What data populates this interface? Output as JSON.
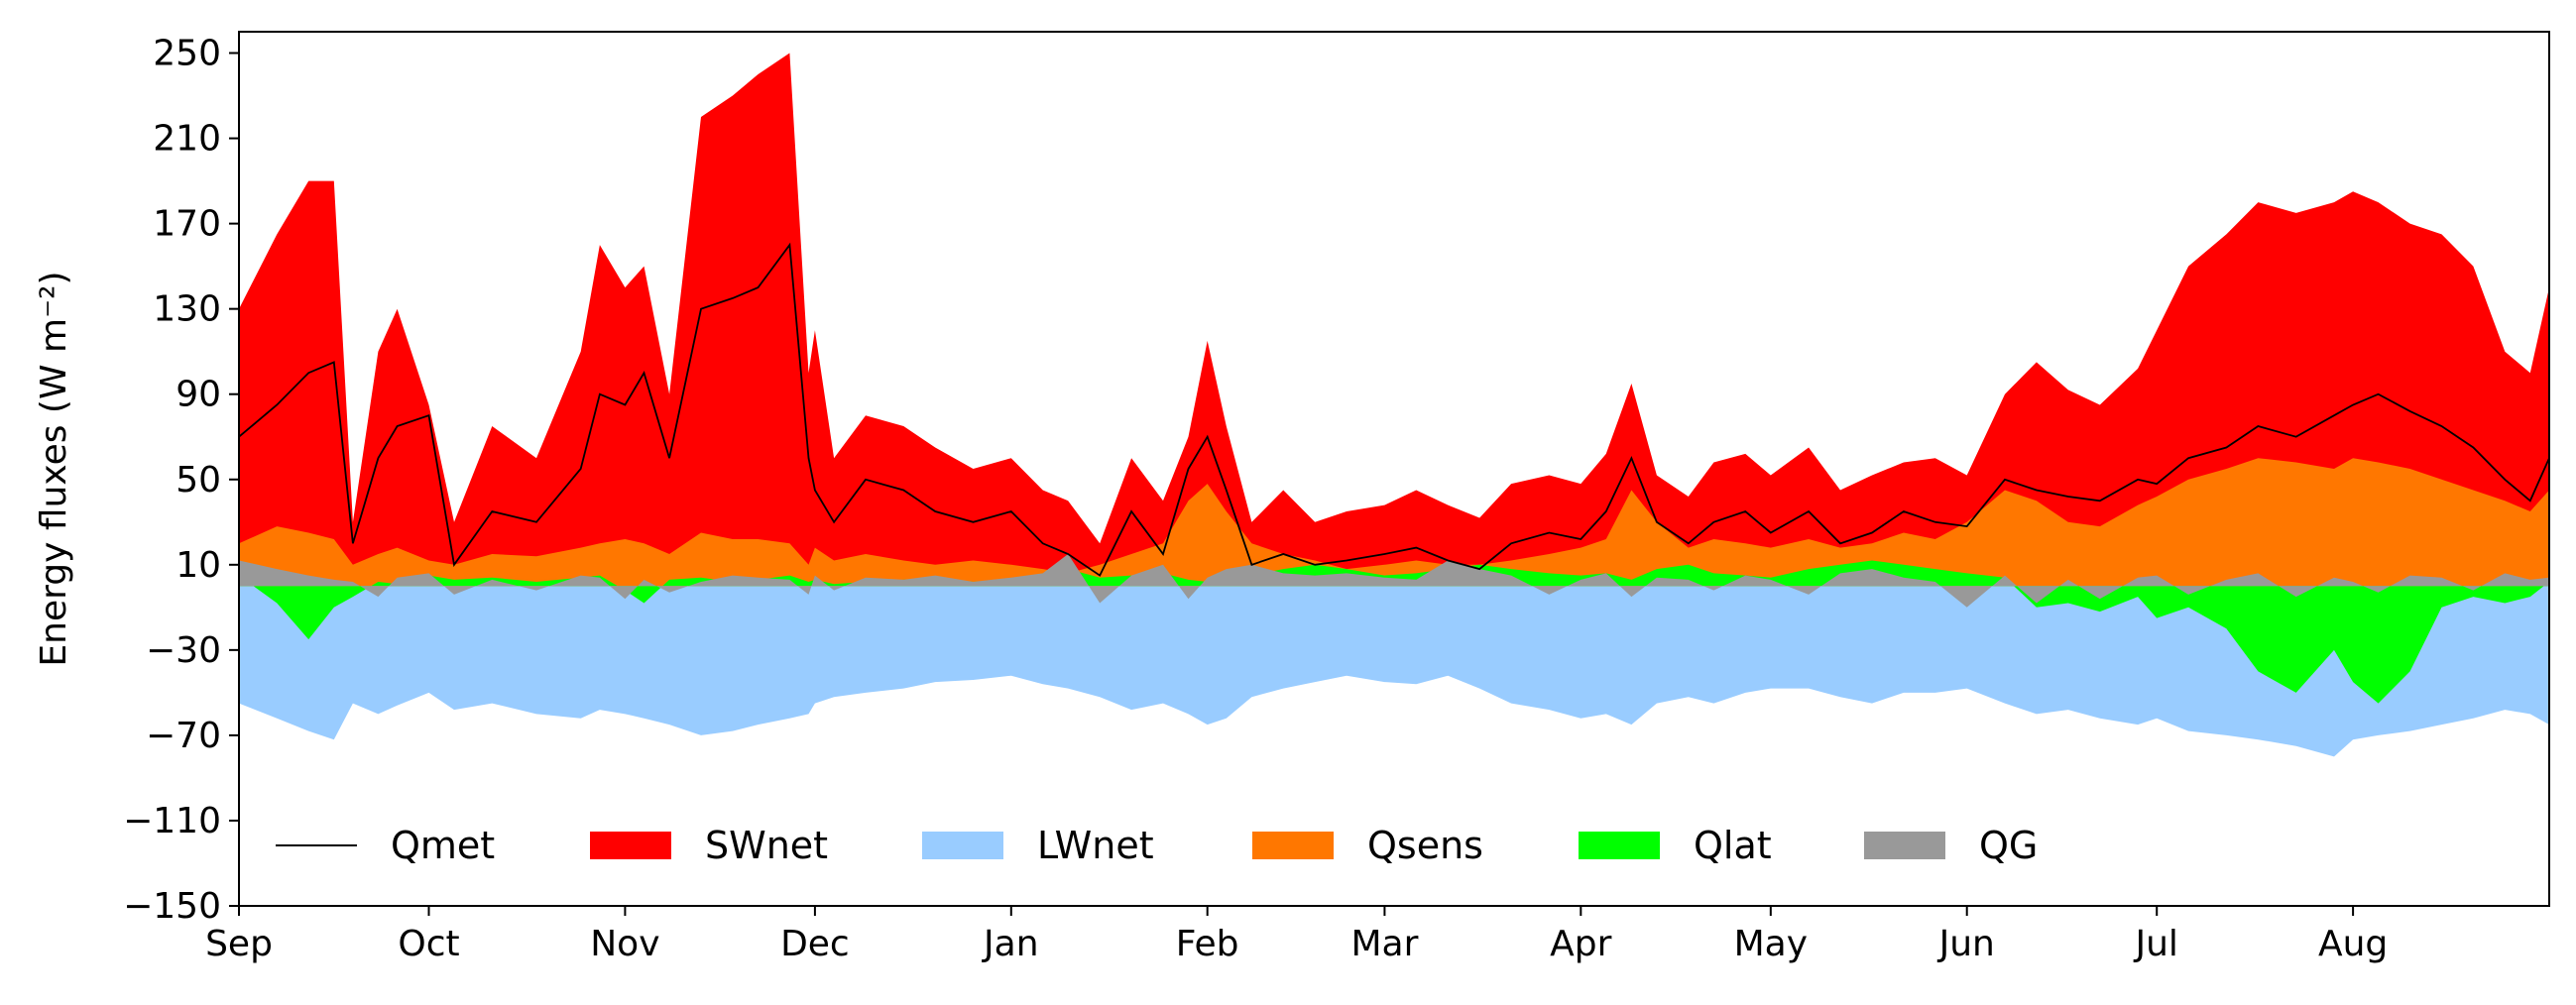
{
  "chart_data": {
    "type": "area",
    "title": "",
    "xlabel": "",
    "ylabel": "Energy fluxes (W m⁻²)",
    "ylim": [
      -150,
      260
    ],
    "yticks": [
      250,
      210,
      170,
      130,
      90,
      50,
      10,
      -30,
      -70,
      -110,
      -150
    ],
    "ytick_labels": [
      "250",
      "210",
      "170",
      "130",
      "90",
      "50",
      "10",
      "−30",
      "−70",
      "−110",
      "−150"
    ],
    "xlim": [
      0,
      365
    ],
    "xticks": [
      {
        "label": "Sep",
        "day": 0
      },
      {
        "label": "Oct",
        "day": 30
      },
      {
        "label": "Nov",
        "day": 61
      },
      {
        "label": "Dec",
        "day": 91
      },
      {
        "label": "Jan",
        "day": 122
      },
      {
        "label": "Feb",
        "day": 153
      },
      {
        "label": "Mar",
        "day": 181
      },
      {
        "label": "Apr",
        "day": 212
      },
      {
        "label": "May",
        "day": 242
      },
      {
        "label": "Jun",
        "day": 273
      },
      {
        "label": "Jul",
        "day": 303
      },
      {
        "label": "Aug",
        "day": 334
      }
    ],
    "grid": false,
    "legend_position": "bottom-left",
    "x": [
      0,
      6,
      11,
      15,
      18,
      22,
      25,
      30,
      34,
      40,
      47,
      54,
      57,
      61,
      64,
      68,
      73,
      78,
      82,
      87,
      90,
      91,
      94,
      99,
      105,
      110,
      116,
      122,
      127,
      131,
      136,
      141,
      146,
      150,
      153,
      156,
      160,
      165,
      170,
      175,
      181,
      186,
      191,
      196,
      201,
      207,
      212,
      216,
      220,
      224,
      229,
      233,
      238,
      242,
      248,
      253,
      258,
      263,
      268,
      273,
      279,
      284,
      289,
      294,
      300,
      303,
      308,
      314,
      319,
      325,
      331,
      334,
      338,
      343,
      348,
      353,
      358,
      362,
      365
    ],
    "series": [
      {
        "name": "SWnet",
        "color": "#ff0000",
        "values": [
          130,
          165,
          190,
          190,
          30,
          110,
          130,
          85,
          30,
          75,
          60,
          110,
          160,
          140,
          150,
          90,
          220,
          230,
          240,
          250,
          100,
          120,
          60,
          80,
          75,
          65,
          55,
          60,
          45,
          40,
          20,
          60,
          40,
          70,
          115,
          75,
          30,
          45,
          30,
          35,
          38,
          45,
          38,
          32,
          48,
          52,
          48,
          62,
          95,
          52,
          42,
          58,
          62,
          52,
          65,
          45,
          52,
          58,
          60,
          52,
          90,
          105,
          92,
          85,
          102,
          120,
          150,
          165,
          180,
          175,
          180,
          185,
          180,
          170,
          165,
          150,
          110,
          100,
          140
        ]
      },
      {
        "name": "LWnet",
        "color": "#99ccff",
        "values": [
          -55,
          -62,
          -68,
          -72,
          -55,
          -60,
          -56,
          -50,
          -58,
          -55,
          -60,
          -62,
          -58,
          -60,
          -62,
          -65,
          -70,
          -68,
          -65,
          -62,
          -60,
          -55,
          -52,
          -50,
          -48,
          -45,
          -44,
          -42,
          -46,
          -48,
          -52,
          -58,
          -55,
          -60,
          -65,
          -62,
          -52,
          -48,
          -45,
          -42,
          -45,
          -46,
          -42,
          -48,
          -55,
          -58,
          -62,
          -60,
          -65,
          -55,
          -52,
          -55,
          -50,
          -48,
          -48,
          -52,
          -55,
          -50,
          -50,
          -48,
          -55,
          -60,
          -58,
          -62,
          -65,
          -62,
          -68,
          -70,
          -72,
          -75,
          -80,
          -72,
          -70,
          -68,
          -65,
          -62,
          -58,
          -60,
          -65
        ]
      },
      {
        "name": "Qsens",
        "color": "#ff7700",
        "values": [
          20,
          28,
          25,
          22,
          10,
          15,
          18,
          12,
          10,
          15,
          14,
          18,
          20,
          22,
          20,
          15,
          25,
          22,
          22,
          20,
          10,
          18,
          12,
          15,
          12,
          10,
          12,
          10,
          8,
          6,
          10,
          15,
          20,
          40,
          48,
          35,
          20,
          15,
          12,
          8,
          10,
          12,
          10,
          10,
          12,
          15,
          18,
          22,
          45,
          30,
          18,
          22,
          20,
          18,
          22,
          18,
          20,
          25,
          22,
          30,
          45,
          40,
          30,
          28,
          38,
          42,
          50,
          55,
          60,
          58,
          55,
          60,
          58,
          55,
          50,
          45,
          40,
          35,
          45
        ]
      },
      {
        "name": "Qlat",
        "color": "#00ff00",
        "values": [
          5,
          -8,
          -25,
          -10,
          -5,
          2,
          1,
          5,
          3,
          4,
          2,
          4,
          5,
          -2,
          -8,
          3,
          4,
          2,
          3,
          5,
          2,
          3,
          1,
          2,
          3,
          4,
          2,
          3,
          5,
          8,
          4,
          5,
          6,
          3,
          2,
          4,
          5,
          8,
          10,
          8,
          5,
          6,
          8,
          10,
          8,
          6,
          5,
          6,
          3,
          8,
          10,
          6,
          5,
          4,
          8,
          10,
          12,
          10,
          8,
          6,
          4,
          -10,
          -8,
          -12,
          -5,
          -15,
          -10,
          -20,
          -40,
          -50,
          -30,
          -45,
          -55,
          -40,
          -10,
          -5,
          -8,
          -5,
          2
        ]
      },
      {
        "name": "QG",
        "color": "#999999",
        "values": [
          12,
          8,
          5,
          3,
          2,
          -5,
          4,
          6,
          -4,
          3,
          -2,
          5,
          4,
          -6,
          3,
          -3,
          2,
          5,
          4,
          3,
          -4,
          5,
          -2,
          4,
          3,
          5,
          2,
          4,
          6,
          15,
          -8,
          5,
          10,
          -6,
          4,
          8,
          10,
          6,
          5,
          6,
          4,
          3,
          12,
          8,
          5,
          -4,
          3,
          6,
          -5,
          4,
          3,
          -2,
          5,
          3,
          -4,
          6,
          8,
          4,
          2,
          -10,
          5,
          -8,
          3,
          -6,
          4,
          5,
          -4,
          3,
          6,
          -5,
          4,
          2,
          -3,
          5,
          4,
          -2,
          6,
          3,
          4
        ]
      },
      {
        "name": "Qmet",
        "color": "#000000",
        "values": [
          70,
          85,
          100,
          105,
          20,
          60,
          75,
          80,
          10,
          35,
          30,
          55,
          90,
          85,
          100,
          60,
          130,
          135,
          140,
          160,
          60,
          45,
          30,
          50,
          45,
          35,
          30,
          35,
          20,
          15,
          5,
          35,
          15,
          55,
          70,
          45,
          10,
          15,
          10,
          12,
          15,
          18,
          12,
          8,
          20,
          25,
          22,
          35,
          60,
          30,
          20,
          30,
          35,
          25,
          35,
          20,
          25,
          35,
          30,
          28,
          50,
          45,
          42,
          40,
          50,
          48,
          60,
          65,
          75,
          70,
          80,
          85,
          90,
          82,
          75,
          65,
          50,
          40,
          60
        ]
      }
    ]
  }
}
